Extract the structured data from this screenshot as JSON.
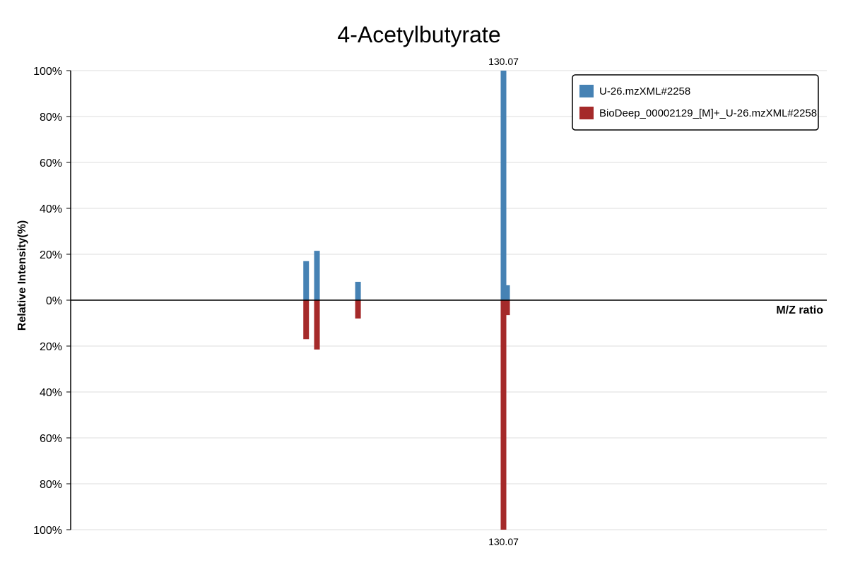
{
  "chart_data": {
    "type": "bar",
    "title": "4-Acetylbutyrate",
    "ylabel": "Relative Intensity(%)",
    "xlabel": "M/Z ratio",
    "ylim": [
      -100,
      100
    ],
    "y_ticks": [
      {
        "value": 100,
        "label": "100%"
      },
      {
        "value": 80,
        "label": "80%"
      },
      {
        "value": 60,
        "label": "60%"
      },
      {
        "value": 40,
        "label": "40%"
      },
      {
        "value": 20,
        "label": "20%"
      },
      {
        "value": 0,
        "label": "0%"
      },
      {
        "value": -20,
        "label": "20%"
      },
      {
        "value": -40,
        "label": "40%"
      },
      {
        "value": -60,
        "label": "60%"
      },
      {
        "value": -80,
        "label": "80%"
      },
      {
        "value": -100,
        "label": "100%"
      }
    ],
    "grid": true,
    "legend_position": "top-right",
    "series": [
      {
        "name": "U-26.mzXML#2258",
        "color": "#4682b4",
        "direction": "up",
        "peaks": [
          {
            "mz": 111.8,
            "intensity": 17
          },
          {
            "mz": 112.8,
            "intensity": 21.5
          },
          {
            "mz": 116.6,
            "intensity": 8
          },
          {
            "mz": 130.07,
            "intensity": 100
          },
          {
            "mz": 130.4,
            "intensity": 6.5
          }
        ]
      },
      {
        "name": "BioDeep_00002129_[M]+_U-26.mzXML#2258",
        "color": "#a52a2a",
        "direction": "down",
        "peaks": [
          {
            "mz": 111.8,
            "intensity": 17
          },
          {
            "mz": 112.8,
            "intensity": 21.5
          },
          {
            "mz": 116.6,
            "intensity": 8
          },
          {
            "mz": 130.07,
            "intensity": 100
          },
          {
            "mz": 130.4,
            "intensity": 6.5
          }
        ]
      }
    ],
    "annotations": [
      {
        "series": 0,
        "mz": 130.07,
        "text": "130.07"
      },
      {
        "series": 1,
        "mz": 130.07,
        "text": "130.07"
      }
    ]
  }
}
